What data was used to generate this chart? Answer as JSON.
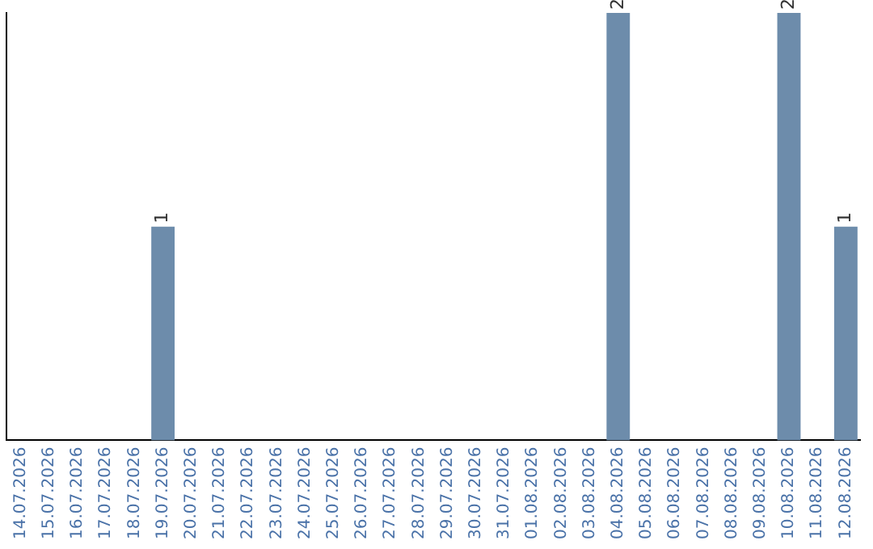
{
  "chart_data": {
    "type": "bar",
    "categories": [
      "14.07.2026",
      "15.07.2026",
      "16.07.2026",
      "17.07.2026",
      "18.07.2026",
      "19.07.2026",
      "20.07.2026",
      "21.07.2026",
      "22.07.2026",
      "23.07.2026",
      "24.07.2026",
      "25.07.2026",
      "26.07.2026",
      "27.07.2026",
      "28.07.2026",
      "29.07.2026",
      "30.07.2026",
      "31.07.2026",
      "01.08.2026",
      "02.08.2026",
      "03.08.2026",
      "04.08.2026",
      "05.08.2026",
      "06.08.2026",
      "07.08.2026",
      "08.08.2026",
      "09.08.2026",
      "10.08.2026",
      "11.08.2026",
      "12.08.2026"
    ],
    "values": [
      0,
      0,
      0,
      0,
      0,
      1,
      0,
      0,
      0,
      0,
      0,
      0,
      0,
      0,
      0,
      0,
      0,
      0,
      0,
      0,
      0,
      2,
      0,
      0,
      0,
      0,
      0,
      2,
      0,
      1
    ],
    "color": "#6d8cab",
    "ylim": [
      0,
      2
    ],
    "value_labels": [
      null,
      null,
      null,
      null,
      null,
      "1",
      null,
      null,
      null,
      null,
      null,
      null,
      null,
      null,
      null,
      null,
      null,
      null,
      null,
      null,
      null,
      "2",
      null,
      null,
      null,
      null,
      null,
      "2",
      null,
      "1"
    ],
    "tick_labels": "x",
    "grid": false,
    "legend": false
  }
}
